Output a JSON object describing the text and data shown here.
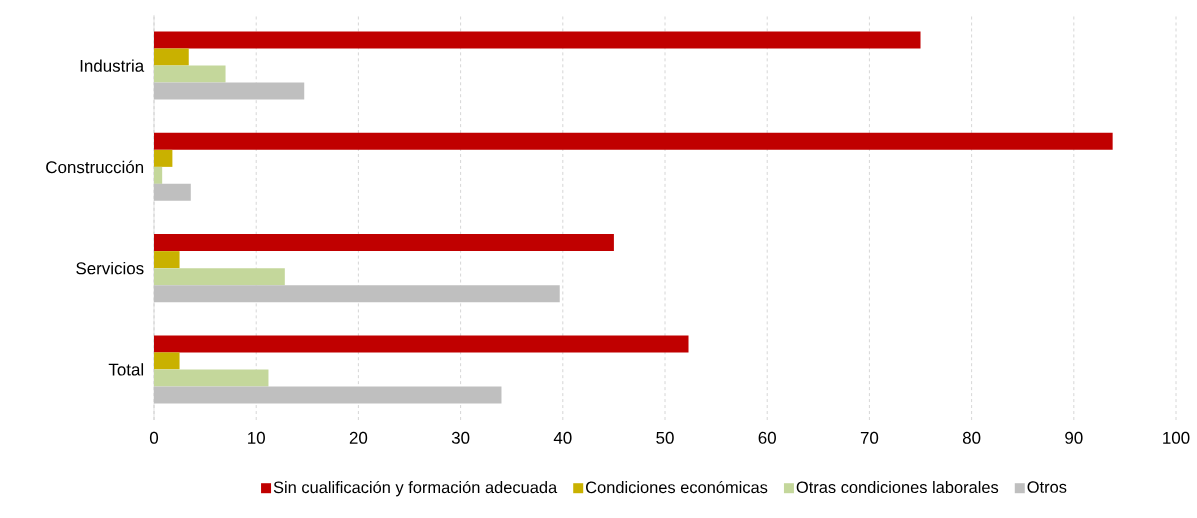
{
  "chart_data": {
    "type": "bar",
    "orientation": "horizontal",
    "categories": [
      "Industria",
      "Construcción",
      "Servicios",
      "Total"
    ],
    "series": [
      {
        "name": "Sin cualificación y formación adecuada",
        "color": "#c00000",
        "values": [
          75.0,
          93.8,
          45.0,
          52.3
        ]
      },
      {
        "name": "Condiciones económicas",
        "color": "#c9b100",
        "values": [
          3.4,
          1.8,
          2.5,
          2.5
        ]
      },
      {
        "name": "Otras condiciones laborales",
        "color": "#c4d79b",
        "values": [
          7.0,
          0.8,
          12.8,
          11.2
        ]
      },
      {
        "name": "Otros",
        "color": "#bfbfbf",
        "values": [
          14.7,
          3.6,
          39.7,
          34.0
        ]
      }
    ],
    "xlim": [
      0,
      100
    ],
    "xticks": [
      0,
      10,
      20,
      30,
      40,
      50,
      60,
      70,
      80,
      90,
      100
    ],
    "grid": "x",
    "legend": "bottom"
  }
}
